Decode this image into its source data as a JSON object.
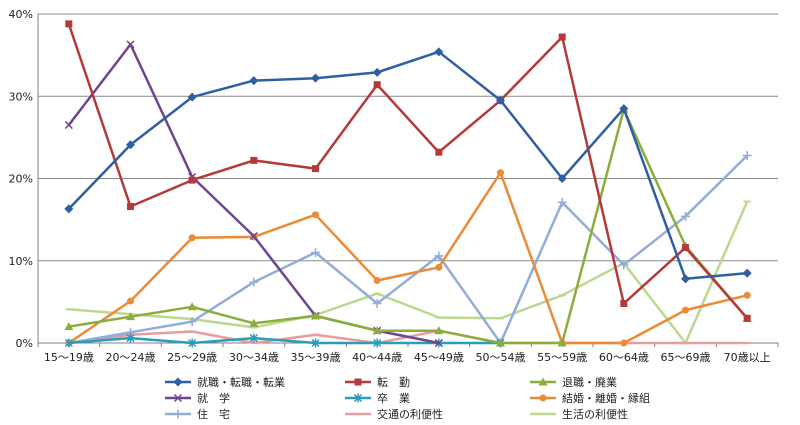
{
  "chart_data": {
    "type": "line",
    "title": "",
    "xlabel": "",
    "ylabel": "",
    "ylim": [
      0,
      40
    ],
    "yticks": [
      0,
      10,
      20,
      30,
      40
    ],
    "ytick_labels": [
      "0%",
      "10%",
      "20%",
      "30%",
      "40%"
    ],
    "grid": true,
    "legend_position": "bottom",
    "categories": [
      "15～19歳",
      "20～24歳",
      "25～29歳",
      "30～34歳",
      "35～39歳",
      "40～44歳",
      "45～49歳",
      "50～54歳",
      "55～59歳",
      "60～64歳",
      "65～69歳",
      "70歳以上"
    ],
    "series": [
      {
        "name": "就職・転職・転業",
        "color": "#2e5fa3",
        "marker": "diamond",
        "values": [
          16.3,
          24.1,
          29.9,
          31.9,
          32.2,
          32.9,
          35.4,
          29.5,
          20.0,
          28.5,
          7.8,
          8.5
        ]
      },
      {
        "name": "転　勤",
        "color": "#b3393a",
        "marker": "square",
        "values": [
          38.8,
          16.6,
          19.8,
          22.2,
          21.2,
          31.4,
          23.2,
          29.5,
          37.2,
          4.8,
          11.6,
          3.0
        ]
      },
      {
        "name": "退職・廃業",
        "color": "#8aad3b",
        "marker": "triangle",
        "values": [
          2.0,
          3.2,
          4.4,
          2.4,
          3.3,
          1.5,
          1.5,
          0.0,
          0.0,
          28.4,
          11.8,
          3.0
        ]
      },
      {
        "name": "就　学",
        "color": "#6e4590",
        "marker": "x",
        "values": [
          26.5,
          36.3,
          20.2,
          13.0,
          3.3,
          1.5,
          0.0,
          null,
          null,
          null,
          null,
          null
        ]
      },
      {
        "name": "卒　業",
        "color": "#2a9cbc",
        "marker": "star",
        "values": [
          0.0,
          0.6,
          0.0,
          0.6,
          0.0,
          0.0,
          0.0,
          0.0,
          null,
          null,
          null,
          null
        ]
      },
      {
        "name": "結婚・離婚・縁組",
        "color": "#ec8a35",
        "marker": "circle",
        "values": [
          0.0,
          5.1,
          12.8,
          12.9,
          15.6,
          7.6,
          9.2,
          20.7,
          0.0,
          0.0,
          4.0,
          5.8
        ]
      },
      {
        "name": "住　宅",
        "color": "#92add6",
        "marker": "plus",
        "values": [
          0.0,
          1.3,
          2.6,
          7.4,
          11.0,
          4.8,
          10.6,
          0.0,
          17.1,
          9.5,
          15.4,
          22.8
        ]
      },
      {
        "name": "交通の利便性",
        "color": "#e89c9d",
        "marker": "dash",
        "values": [
          0.0,
          1.0,
          1.4,
          0.0,
          1.0,
          0.0,
          1.5,
          0.0,
          0.0,
          0.0,
          0.0,
          0.0
        ]
      },
      {
        "name": "生活の利便性",
        "color": "#bcd88f",
        "marker": "dash",
        "values": [
          4.1,
          3.5,
          2.9,
          1.9,
          3.4,
          6.0,
          3.1,
          3.0,
          5.8,
          9.7,
          0.0,
          17.2
        ]
      }
    ]
  }
}
